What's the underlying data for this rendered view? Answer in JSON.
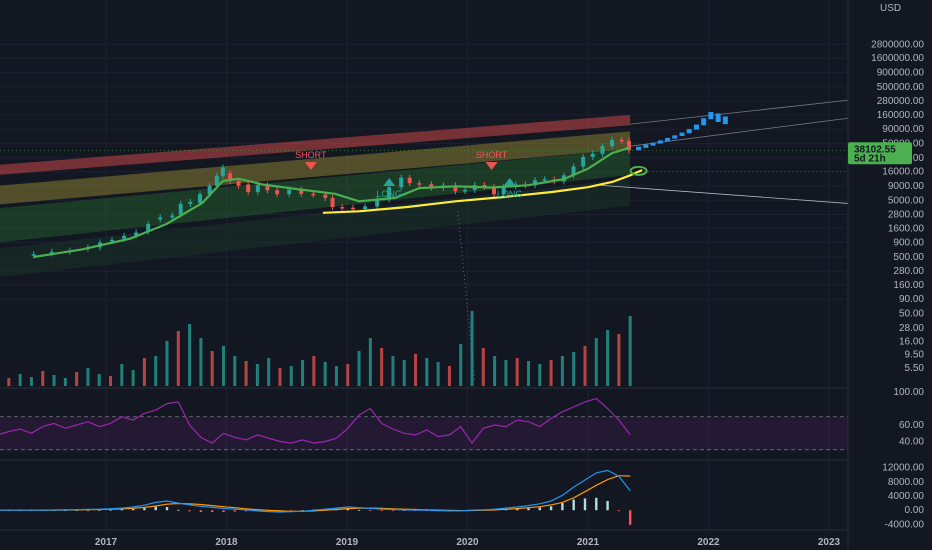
{
  "colors": {
    "background": "#131722",
    "up": "#26a69a",
    "down": "#ef5350",
    "ema_green": "#4caf50",
    "ma_yellow": "#ffeb3b",
    "projection": "#2196f3",
    "rsi": "#9c27b0",
    "macd": "#2196f3",
    "signal": "#ff9800",
    "price_badge": "#4caf50"
  },
  "chart_data": [
    {
      "type": "candlestick",
      "panel": "price",
      "yscale": "log",
      "currency": "USD",
      "x_ticks": [
        "2017",
        "2018",
        "2019",
        "2020",
        "2021",
        "2022",
        "2023"
      ],
      "y_ticks": [
        "2800000.00",
        "1600000.00",
        "900000.00",
        "500000.00",
        "280000.00",
        "160000.00",
        "90000.00",
        "50000.00",
        "28000.00",
        "16000.00",
        "9000.00",
        "5000.00",
        "2800.00",
        "1600.00",
        "900.00",
        "500.00",
        "280.00",
        "160.00",
        "90.00",
        "50.00",
        "28.00",
        "16.00",
        "9.50",
        "5.50"
      ],
      "last_price": "38102.55",
      "countdown": "5d 21h",
      "annotations": [
        {
          "text": "SHORT",
          "date": "2018.70",
          "kind": "short"
        },
        {
          "text": "LONG",
          "date": "2019.35",
          "kind": "long"
        },
        {
          "text": "SHORT",
          "date": "2020.20",
          "kind": "short"
        },
        {
          "text": "LONG",
          "date": "2020.35",
          "kind": "long"
        }
      ],
      "candles": [
        [
          2016.4,
          530,
          560
        ],
        [
          2016.55,
          580,
          620
        ],
        [
          2016.7,
          620,
          650
        ],
        [
          2016.85,
          700,
          740
        ],
        [
          2016.95,
          740,
          900
        ],
        [
          2017.05,
          950,
          1000
        ],
        [
          2017.15,
          1050,
          1180
        ],
        [
          2017.25,
          1200,
          1350
        ],
        [
          2017.35,
          1400,
          1900
        ],
        [
          2017.45,
          2300,
          2500
        ],
        [
          2017.55,
          2500,
          2700
        ],
        [
          2017.62,
          2800,
          4300
        ],
        [
          2017.7,
          4300,
          4700
        ],
        [
          2017.78,
          4500,
          6400
        ],
        [
          2017.86,
          6400,
          9000
        ],
        [
          2017.92,
          9000,
          13500
        ],
        [
          2017.97,
          13500,
          19000
        ],
        [
          2018.03,
          15000,
          11000
        ],
        [
          2018.1,
          11000,
          9000
        ],
        [
          2018.18,
          9500,
          7000
        ],
        [
          2018.26,
          7000,
          9200
        ],
        [
          2018.34,
          9200,
          7500
        ],
        [
          2018.42,
          7500,
          6400
        ],
        [
          2018.52,
          6400,
          7700
        ],
        [
          2018.62,
          7700,
          6500
        ],
        [
          2018.72,
          6500,
          6300
        ],
        [
          2018.82,
          6300,
          5500
        ],
        [
          2018.88,
          5500,
          3800
        ],
        [
          2018.96,
          3800,
          3700
        ],
        [
          2019.05,
          3700,
          3500
        ],
        [
          2019.15,
          3500,
          3900
        ],
        [
          2019.25,
          3900,
          5200
        ],
        [
          2019.35,
          5200,
          8500
        ],
        [
          2019.45,
          8500,
          12500
        ],
        [
          2019.52,
          12500,
          10000
        ],
        [
          2019.6,
          10000,
          9600
        ],
        [
          2019.7,
          9600,
          8300
        ],
        [
          2019.8,
          8300,
          9200
        ],
        [
          2019.9,
          9200,
          7200
        ],
        [
          2019.98,
          7200,
          7600
        ],
        [
          2020.06,
          7600,
          9300
        ],
        [
          2020.14,
          9300,
          8600
        ],
        [
          2020.22,
          8600,
          6400
        ],
        [
          2020.3,
          6400,
          8700
        ],
        [
          2020.4,
          8700,
          9500
        ],
        [
          2020.48,
          9500,
          9200
        ],
        [
          2020.56,
          9200,
          11300
        ],
        [
          2020.64,
          11300,
          11700
        ],
        [
          2020.72,
          11700,
          10800
        ],
        [
          2020.8,
          10800,
          13800
        ],
        [
          2020.88,
          13800,
          19700
        ],
        [
          2020.96,
          19700,
          29000
        ],
        [
          2021.04,
          29000,
          33000
        ],
        [
          2021.12,
          33000,
          45000
        ],
        [
          2021.2,
          45000,
          58000
        ],
        [
          2021.28,
          58000,
          56000
        ],
        [
          2021.34,
          56000,
          38102
        ]
      ],
      "projection_bars": [
        [
          2021.42,
          38000,
          44000
        ],
        [
          2021.48,
          42000,
          48000
        ],
        [
          2021.54,
          46000,
          52000
        ],
        [
          2021.6,
          50000,
          57000
        ],
        [
          2021.66,
          55000,
          63000
        ],
        [
          2021.72,
          61000,
          70000
        ],
        [
          2021.78,
          68000,
          78000
        ],
        [
          2021.84,
          76000,
          90000
        ],
        [
          2021.9,
          88000,
          108000
        ],
        [
          2021.96,
          105000,
          140000
        ],
        [
          2022.02,
          135000,
          180000
        ],
        [
          2022.08,
          120000,
          170000
        ],
        [
          2022.14,
          110000,
          150000
        ]
      ],
      "ema": [
        [
          2016.4,
          500
        ],
        [
          2016.8,
          680
        ],
        [
          2017.2,
          1050
        ],
        [
          2017.5,
          1900
        ],
        [
          2017.8,
          4500
        ],
        [
          2017.97,
          11000
        ],
        [
          2018.1,
          12000
        ],
        [
          2018.3,
          9500
        ],
        [
          2018.6,
          7800
        ],
        [
          2018.9,
          6500
        ],
        [
          2019.1,
          4800
        ],
        [
          2019.4,
          5500
        ],
        [
          2019.6,
          8200
        ],
        [
          2019.9,
          8800
        ],
        [
          2020.2,
          8400
        ],
        [
          2020.5,
          9200
        ],
        [
          2020.8,
          11800
        ],
        [
          2021.0,
          18000
        ],
        [
          2021.2,
          34000
        ],
        [
          2021.34,
          42000
        ]
      ],
      "ma_yellow": [
        [
          2018.8,
          3000
        ],
        [
          2019.1,
          3200
        ],
        [
          2019.5,
          3800
        ],
        [
          2019.9,
          4800
        ],
        [
          2020.3,
          5700
        ],
        [
          2020.7,
          7000
        ],
        [
          2021.0,
          8500
        ],
        [
          2021.2,
          10500
        ],
        [
          2021.34,
          13500
        ],
        [
          2021.45,
          17000
        ]
      ]
    },
    {
      "type": "bar",
      "panel": "volume",
      "ylim": [
        0,
        1
      ],
      "values": [
        0.1,
        0.08,
        0.12,
        0.09,
        0.15,
        0.11,
        0.08,
        0.14,
        0.18,
        0.12,
        0.1,
        0.22,
        0.16,
        0.28,
        0.3,
        0.45,
        0.55,
        0.62,
        0.48,
        0.35,
        0.4,
        0.3,
        0.25,
        0.22,
        0.28,
        0.18,
        0.2,
        0.26,
        0.3,
        0.24,
        0.2,
        0.22,
        0.35,
        0.48,
        0.38,
        0.3,
        0.26,
        0.32,
        0.28,
        0.24,
        0.2,
        0.42,
        0.75,
        0.38,
        0.3,
        0.26,
        0.28,
        0.25,
        0.22,
        0.26,
        0.3,
        0.34,
        0.4,
        0.48,
        0.56,
        0.52,
        0.7
      ]
    },
    {
      "type": "line",
      "panel": "rsi",
      "y_ticks": [
        "100.00",
        "60.00",
        "40.00"
      ],
      "bands": [
        70,
        30
      ],
      "values": [
        48,
        52,
        55,
        50,
        58,
        62,
        56,
        60,
        64,
        58,
        62,
        70,
        66,
        74,
        78,
        86,
        88,
        60,
        45,
        38,
        50,
        45,
        42,
        48,
        44,
        40,
        38,
        42,
        38,
        40,
        44,
        56,
        72,
        80,
        62,
        55,
        50,
        48,
        54,
        46,
        48,
        58,
        38,
        56,
        60,
        58,
        66,
        64,
        58,
        68,
        76,
        82,
        88,
        92,
        80,
        66,
        48
      ]
    },
    {
      "type": "line",
      "panel": "macd",
      "y_ticks": [
        "12000.00",
        "8000.00",
        "4000.00",
        "0.00",
        "-4000.00"
      ],
      "macd": [
        0,
        0,
        10,
        20,
        40,
        60,
        90,
        140,
        220,
        300,
        420,
        600,
        900,
        1400,
        2200,
        2600,
        2000,
        1500,
        1100,
        800,
        500,
        300,
        100,
        -200,
        -400,
        -500,
        -400,
        -300,
        0,
        300,
        600,
        900,
        700,
        500,
        300,
        200,
        100,
        50,
        20,
        -100,
        -200,
        -150,
        0,
        100,
        300,
        600,
        900,
        1300,
        1800,
        2600,
        4200,
        6500,
        8500,
        10500,
        11200,
        9500,
        5500
      ],
      "signal": [
        0,
        0,
        5,
        10,
        25,
        40,
        60,
        90,
        140,
        200,
        280,
        380,
        550,
        800,
        1200,
        1700,
        1900,
        1800,
        1600,
        1300,
        1000,
        700,
        400,
        150,
        -50,
        -200,
        -300,
        -300,
        -200,
        0,
        200,
        450,
        600,
        600,
        500,
        400,
        300,
        200,
        120,
        40,
        -50,
        -100,
        -80,
        -20,
        80,
        250,
        450,
        700,
        1000,
        1500,
        2200,
        3500,
        5200,
        7000,
        8600,
        9700,
        9600
      ],
      "histogram": [
        0,
        0,
        5,
        10,
        15,
        20,
        30,
        50,
        80,
        100,
        140,
        220,
        350,
        600,
        1000,
        900,
        100,
        -300,
        -500,
        -500,
        -500,
        -400,
        -300,
        -350,
        -350,
        -300,
        -100,
        0,
        200,
        300,
        400,
        450,
        100,
        -100,
        -200,
        -200,
        -200,
        -150,
        -100,
        -140,
        -150,
        -50,
        80,
        120,
        220,
        350,
        450,
        600,
        800,
        1100,
        2000,
        3000,
        3300,
        3500,
        2600,
        -200,
        -4100
      ]
    }
  ]
}
